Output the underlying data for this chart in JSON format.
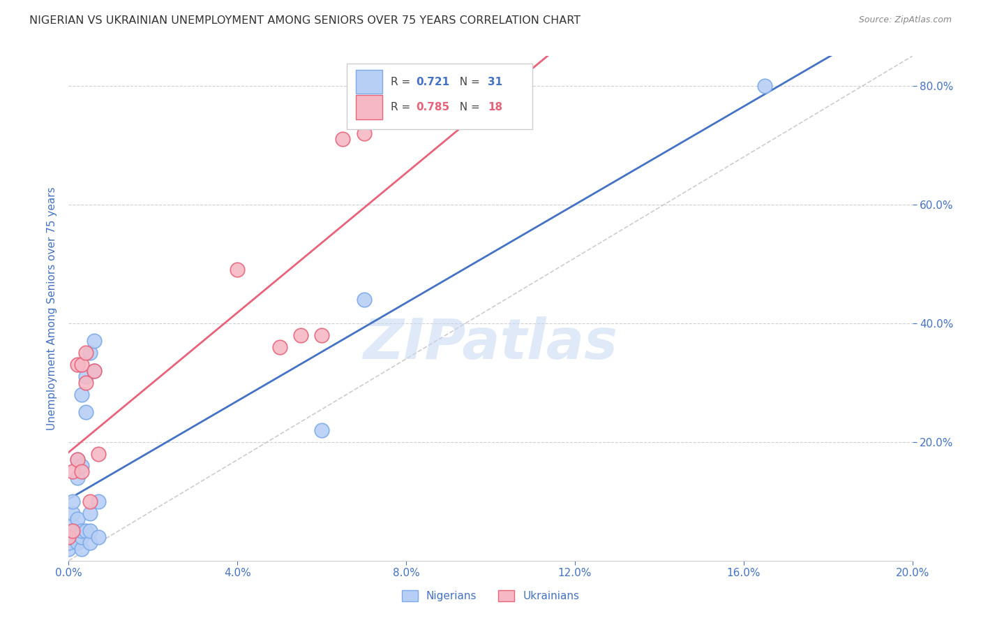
{
  "title": "NIGERIAN VS UKRAINIAN UNEMPLOYMENT AMONG SENIORS OVER 75 YEARS CORRELATION CHART",
  "source": "Source: ZipAtlas.com",
  "ylabel_left": "Unemployment Among Seniors over 75 years",
  "xmin": 0.0,
  "xmax": 0.2,
  "ymin": 0.0,
  "ymax": 0.85,
  "right_yticks": [
    0.2,
    0.4,
    0.6,
    0.8
  ],
  "bottom_xticks": [
    0.0,
    0.04,
    0.08,
    0.12,
    0.16,
    0.2
  ],
  "nigerian_x": [
    0.0,
    0.0,
    0.001,
    0.001,
    0.001,
    0.001,
    0.001,
    0.002,
    0.002,
    0.002,
    0.002,
    0.002,
    0.003,
    0.003,
    0.003,
    0.003,
    0.003,
    0.004,
    0.004,
    0.004,
    0.005,
    0.005,
    0.005,
    0.005,
    0.006,
    0.006,
    0.007,
    0.007,
    0.06,
    0.07,
    0.165
  ],
  "nigerian_y": [
    0.02,
    0.03,
    0.04,
    0.05,
    0.06,
    0.08,
    0.1,
    0.03,
    0.05,
    0.07,
    0.14,
    0.17,
    0.02,
    0.04,
    0.05,
    0.16,
    0.28,
    0.05,
    0.25,
    0.31,
    0.03,
    0.05,
    0.08,
    0.35,
    0.32,
    0.37,
    0.04,
    0.1,
    0.22,
    0.44,
    0.8
  ],
  "ukrainian_x": [
    0.0,
    0.001,
    0.001,
    0.002,
    0.002,
    0.003,
    0.003,
    0.004,
    0.004,
    0.005,
    0.006,
    0.007,
    0.04,
    0.05,
    0.055,
    0.06,
    0.065,
    0.07
  ],
  "ukrainian_y": [
    0.04,
    0.05,
    0.15,
    0.17,
    0.33,
    0.15,
    0.33,
    0.3,
    0.35,
    0.1,
    0.32,
    0.18,
    0.49,
    0.36,
    0.38,
    0.38,
    0.71,
    0.72
  ],
  "nigerian_R": 0.721,
  "nigerian_N": 31,
  "ukrainian_R": 0.785,
  "ukrainian_N": 18,
  "nigerian_line_color": "#4472C4",
  "ukrainian_line_color": "#E8637A",
  "nigerian_scatter_facecolor": "#B8CFF5",
  "ukrainian_scatter_facecolor": "#F5B8C4",
  "nigerian_scatter_edgecolor": "#7BAAE8",
  "ukrainian_scatter_edgecolor": "#E8637A",
  "watermark": "ZIPatlas",
  "background_color": "#ffffff",
  "grid_color": "#d0d0d0",
  "title_color": "#333333",
  "tick_label_color": "#4472C4",
  "ylabel_color": "#4472C4",
  "diag_color": "#c0c0c0"
}
